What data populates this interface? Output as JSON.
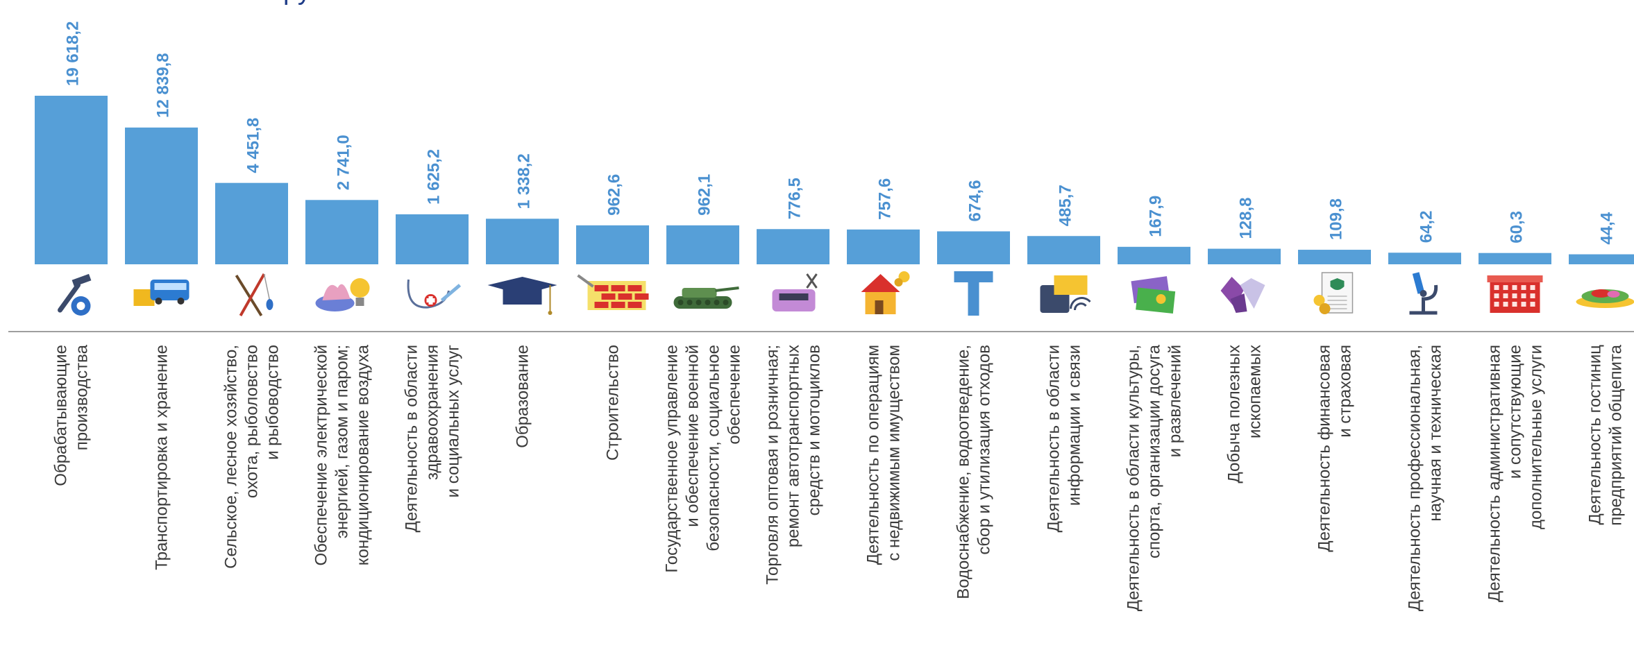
{
  "title_fragment": "руб.",
  "colors": {
    "bar": "#569fd8",
    "value": "#4a90d0",
    "axis": "#7f7f7f",
    "label": "#3a3a3a",
    "title": "#1f3c88"
  },
  "chart_data": {
    "type": "bar",
    "title": "",
    "categories": [
      [
        "Обрабатывающие",
        "производства"
      ],
      [
        "Транспортировка и хранение"
      ],
      [
        "Сельское, лесное хозяйство,",
        "охота, рыболовство",
        "и рыбоводство"
      ],
      [
        "Обеспечение электрической",
        "энергией, газом и паром;",
        "кондиционирование воздуха"
      ],
      [
        "Деятельность в области",
        "здравоохранения",
        "и социальных услуг"
      ],
      [
        "Образование"
      ],
      [
        "Строительство"
      ],
      [
        "Государственное управление",
        "и обеспечение военной",
        "безопасности, социальное",
        "обеспечение"
      ],
      [
        "Торговля оптовая и розничная;",
        "ремонт автотранспортных",
        "средств и мотоциклов"
      ],
      [
        "Деятельность по операциям",
        "с недвижимым имуществом"
      ],
      [
        "Водоснабжение, водоотведение,",
        "сбор и утилизация отходов"
      ],
      [
        "Деятельность в области",
        "информации и связи"
      ],
      [
        "Деятельность в области культуры,",
        "спорта, организации досуга",
        "и развлечений"
      ],
      [
        "Добыча полезных",
        "ископаемых"
      ],
      [
        "Деятельность финансовая",
        "и страховая"
      ],
      [
        "Деятельность профессиональная,",
        "научная и техническая"
      ],
      [
        "Деятельность административная",
        "и сопутствующие",
        "дополнительные услуги"
      ],
      [
        "Деятельность гостиниц",
        "предприятий общепита"
      ]
    ],
    "values": [
      19618.2,
      12839.8,
      4451.8,
      2741.0,
      1625.2,
      1338.2,
      962.6,
      962.1,
      776.5,
      757.6,
      674.6,
      485.7,
      167.9,
      128.8,
      109.8,
      64.2,
      60.3,
      44.4
    ],
    "value_labels": [
      "19 618,2",
      "12 839,8",
      "4 451,8",
      "2 741,0",
      "1 625,2",
      "1 338,2",
      "962,6",
      "962,1",
      "776,5",
      "757,6",
      "674,6",
      "485,7",
      "167,9",
      "128,8",
      "109,8",
      "64,2",
      "60,3",
      "44,4"
    ],
    "icons": [
      "tools-gear-icon",
      "bus-box-icon",
      "fishing-rod-icon",
      "gas-flame-bulb-icon",
      "stethoscope-syringe-icon",
      "graduation-cap-icon",
      "brick-wall-icon",
      "tank-icon",
      "car-repair-icon",
      "house-coins-icon",
      "water-pipe-icon",
      "phone-wifi-icon",
      "tickets-icon",
      "gems-icon",
      "finance-document-icon",
      "microscope-icon",
      "office-building-icon",
      "food-platter-icon"
    ],
    "ylim": [
      0,
      19618.2
    ],
    "grid": false,
    "legend": "none"
  }
}
